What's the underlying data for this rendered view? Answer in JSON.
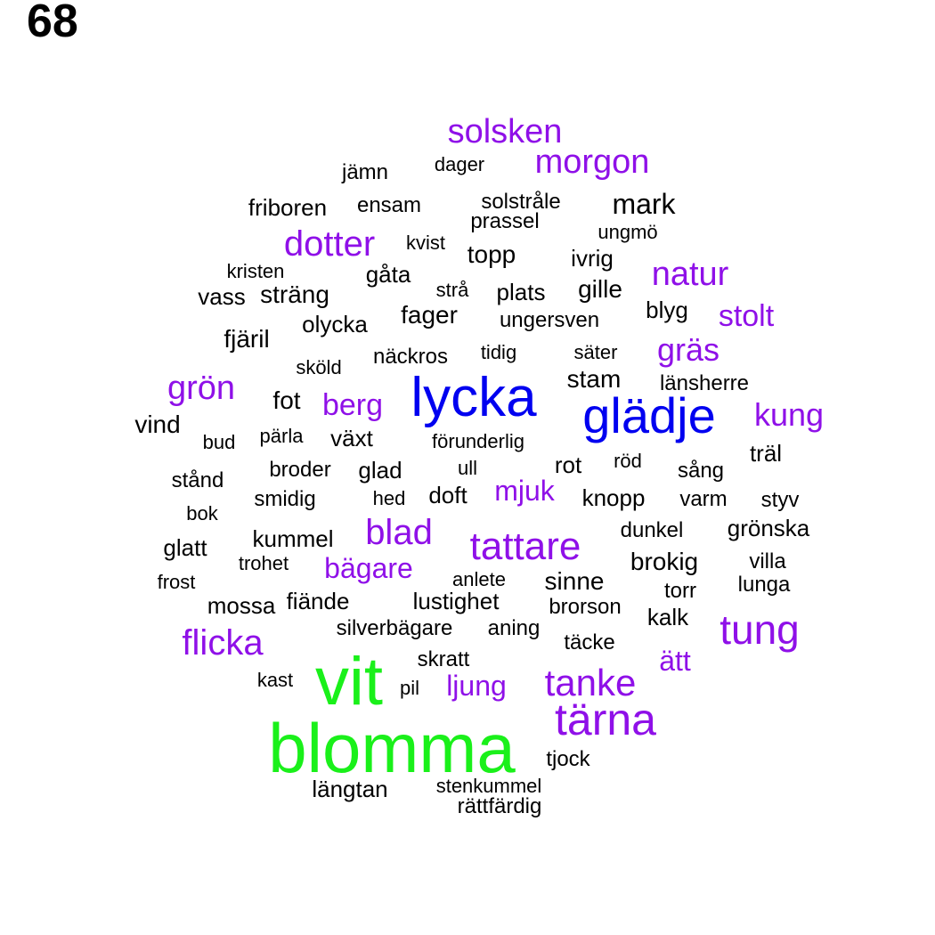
{
  "page_number": "68",
  "colors": {
    "tier_black": "#000000",
    "tier_purple": "#8f10e8",
    "tier_blue": "#0000f0",
    "tier_green": "#1af01a"
  },
  "words": [
    {
      "text": "blomma",
      "color": "#1af01a"
    },
    {
      "text": "vit",
      "color": "#1af01a"
    },
    {
      "text": "lycka",
      "color": "#0000f0"
    },
    {
      "text": "glädje",
      "color": "#0000f0"
    },
    {
      "text": "tärna",
      "color": "#8f10e8"
    },
    {
      "text": "tung",
      "color": "#8f10e8"
    },
    {
      "text": "tattare",
      "color": "#8f10e8"
    },
    {
      "text": "tanke",
      "color": "#8f10e8"
    },
    {
      "text": "flicka",
      "color": "#8f10e8"
    },
    {
      "text": "blad",
      "color": "#8f10e8"
    },
    {
      "text": "dotter",
      "color": "#8f10e8"
    },
    {
      "text": "morgon",
      "color": "#8f10e8"
    },
    {
      "text": "solsken",
      "color": "#8f10e8"
    },
    {
      "text": "natur",
      "color": "#8f10e8"
    },
    {
      "text": "grön",
      "color": "#8f10e8"
    },
    {
      "text": "kung",
      "color": "#8f10e8"
    },
    {
      "text": "gräs",
      "color": "#8f10e8"
    },
    {
      "text": "stolt",
      "color": "#8f10e8"
    },
    {
      "text": "berg",
      "color": "#8f10e8"
    },
    {
      "text": "bägare",
      "color": "#8f10e8"
    },
    {
      "text": "ljung",
      "color": "#8f10e8"
    },
    {
      "text": "ätt",
      "color": "#8f10e8"
    },
    {
      "text": "mjuk",
      "color": "#8f10e8"
    },
    {
      "text": "mark",
      "color": "#000000"
    },
    {
      "text": "vind",
      "color": "#000000"
    },
    {
      "text": "fjäril",
      "color": "#000000"
    },
    {
      "text": "topp",
      "color": "#000000"
    },
    {
      "text": "fager",
      "color": "#000000"
    },
    {
      "text": "sinne",
      "color": "#000000"
    },
    {
      "text": "brokig",
      "color": "#000000"
    },
    {
      "text": "stam",
      "color": "#000000"
    },
    {
      "text": "fot",
      "color": "#000000"
    },
    {
      "text": "sträng",
      "color": "#000000"
    },
    {
      "text": "gille",
      "color": "#000000"
    },
    {
      "text": "ivrig",
      "color": "#000000"
    },
    {
      "text": "blyg",
      "color": "#000000"
    },
    {
      "text": "träl",
      "color": "#000000"
    },
    {
      "text": "glatt",
      "color": "#000000"
    },
    {
      "text": "lustighet",
      "color": "#000000"
    },
    {
      "text": "längtan",
      "color": "#000000"
    },
    {
      "text": "grönska",
      "color": "#000000"
    },
    {
      "text": "rot",
      "color": "#000000"
    },
    {
      "text": "doft",
      "color": "#000000"
    },
    {
      "text": "glad",
      "color": "#000000"
    },
    {
      "text": "kalk",
      "color": "#000000"
    },
    {
      "text": "plats",
      "color": "#000000"
    },
    {
      "text": "vass",
      "color": "#000000"
    },
    {
      "text": "gåta",
      "color": "#000000"
    },
    {
      "text": "olycka",
      "color": "#000000"
    },
    {
      "text": "friboren",
      "color": "#000000"
    },
    {
      "text": "knopp",
      "color": "#000000"
    },
    {
      "text": "växt",
      "color": "#000000"
    },
    {
      "text": "mossa",
      "color": "#000000"
    },
    {
      "text": "fiände",
      "color": "#000000"
    },
    {
      "text": "kummel",
      "color": "#000000"
    },
    {
      "text": "täcke",
      "color": "#000000"
    },
    {
      "text": "sång",
      "color": "#000000"
    },
    {
      "text": "varm",
      "color": "#000000"
    },
    {
      "text": "styv",
      "color": "#000000"
    },
    {
      "text": "villa",
      "color": "#000000"
    },
    {
      "text": "skratt",
      "color": "#000000"
    },
    {
      "text": "ungersven",
      "color": "#000000"
    },
    {
      "text": "dunkel",
      "color": "#000000"
    },
    {
      "text": "smidig",
      "color": "#000000"
    },
    {
      "text": "stånd",
      "color": "#000000"
    },
    {
      "text": "jämn",
      "color": "#000000"
    },
    {
      "text": "torr",
      "color": "#000000"
    },
    {
      "text": "näckros",
      "color": "#000000"
    },
    {
      "text": "rättfärdig",
      "color": "#000000"
    },
    {
      "text": "tjock",
      "color": "#000000"
    },
    {
      "text": "solstråle",
      "color": "#000000"
    },
    {
      "text": "prassel",
      "color": "#000000"
    },
    {
      "text": "ensam",
      "color": "#000000"
    },
    {
      "text": "broder",
      "color": "#000000"
    },
    {
      "text": "länsherre",
      "color": "#000000"
    },
    {
      "text": "lunga",
      "color": "#000000"
    },
    {
      "text": "silverbägare",
      "color": "#000000"
    },
    {
      "text": "aning",
      "color": "#000000"
    },
    {
      "text": "brorson",
      "color": "#000000"
    },
    {
      "text": "förunderlig",
      "color": "#000000"
    },
    {
      "text": "tidig",
      "color": "#000000"
    },
    {
      "text": "säter",
      "color": "#000000"
    },
    {
      "text": "strå",
      "color": "#000000"
    },
    {
      "text": "ungmö",
      "color": "#000000"
    },
    {
      "text": "dager",
      "color": "#000000"
    },
    {
      "text": "kristen",
      "color": "#000000"
    },
    {
      "text": "sköld",
      "color": "#000000"
    },
    {
      "text": "bud",
      "color": "#000000"
    },
    {
      "text": "pärla",
      "color": "#000000"
    },
    {
      "text": "trohet",
      "color": "#000000"
    },
    {
      "text": "frost",
      "color": "#000000"
    },
    {
      "text": "bok",
      "color": "#000000"
    },
    {
      "text": "hed",
      "color": "#000000"
    },
    {
      "text": "ull",
      "color": "#000000"
    },
    {
      "text": "röd",
      "color": "#000000"
    },
    {
      "text": "kvist",
      "color": "#000000"
    },
    {
      "text": "anlete",
      "color": "#000000"
    },
    {
      "text": "kast",
      "color": "#000000"
    },
    {
      "text": "pil",
      "color": "#000000"
    },
    {
      "text": "stenkummel",
      "color": "#000000"
    }
  ]
}
